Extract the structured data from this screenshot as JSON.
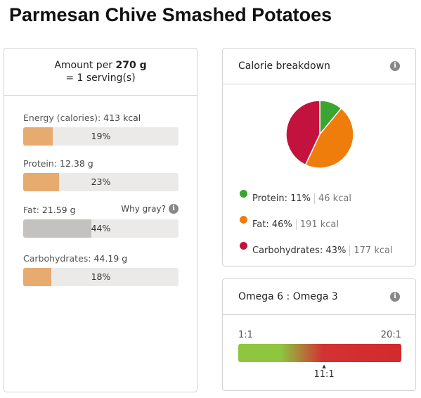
{
  "title": "Parmesan Chive Smashed Potatoes",
  "nutrition": {
    "amount_prefix": "Amount per",
    "amount_value": "270 g",
    "serving": "= 1 serving(s)",
    "why_gray": "Why gray?",
    "nutrients": [
      {
        "name": "Energy (calories):",
        "value": "413 kcal",
        "percent_label": "19%",
        "percent": 19,
        "gray": false
      },
      {
        "name": "Protein:",
        "value": "12.38 g",
        "percent_label": "23%",
        "percent": 23,
        "gray": false
      },
      {
        "name": "Fat:",
        "value": "21.59 g",
        "percent_label": "44%",
        "percent": 44,
        "gray": true
      },
      {
        "name": "Carbohydrates:",
        "value": "44.19 g",
        "percent_label": "18%",
        "percent": 18,
        "gray": false
      }
    ]
  },
  "calorie_breakdown": {
    "title": "Calorie breakdown",
    "items": [
      {
        "name": "Protein:",
        "percent": "11%",
        "kcal": "46 kcal",
        "value": 11,
        "color": "#3aa531"
      },
      {
        "name": "Fat:",
        "percent": "46%",
        "kcal": "191 kcal",
        "value": 46,
        "color": "#ef7d0c"
      },
      {
        "name": "Carbohydrates:",
        "percent": "43%",
        "kcal": "177 kcal",
        "value": 43,
        "color": "#c4123f"
      }
    ]
  },
  "omega": {
    "title": "Omega 6 : Omega 3",
    "min_label": "1:1",
    "max_label": "20:1",
    "value_label": "11:1",
    "value": 11,
    "min": 1,
    "max": 20,
    "marker": "▲"
  }
}
